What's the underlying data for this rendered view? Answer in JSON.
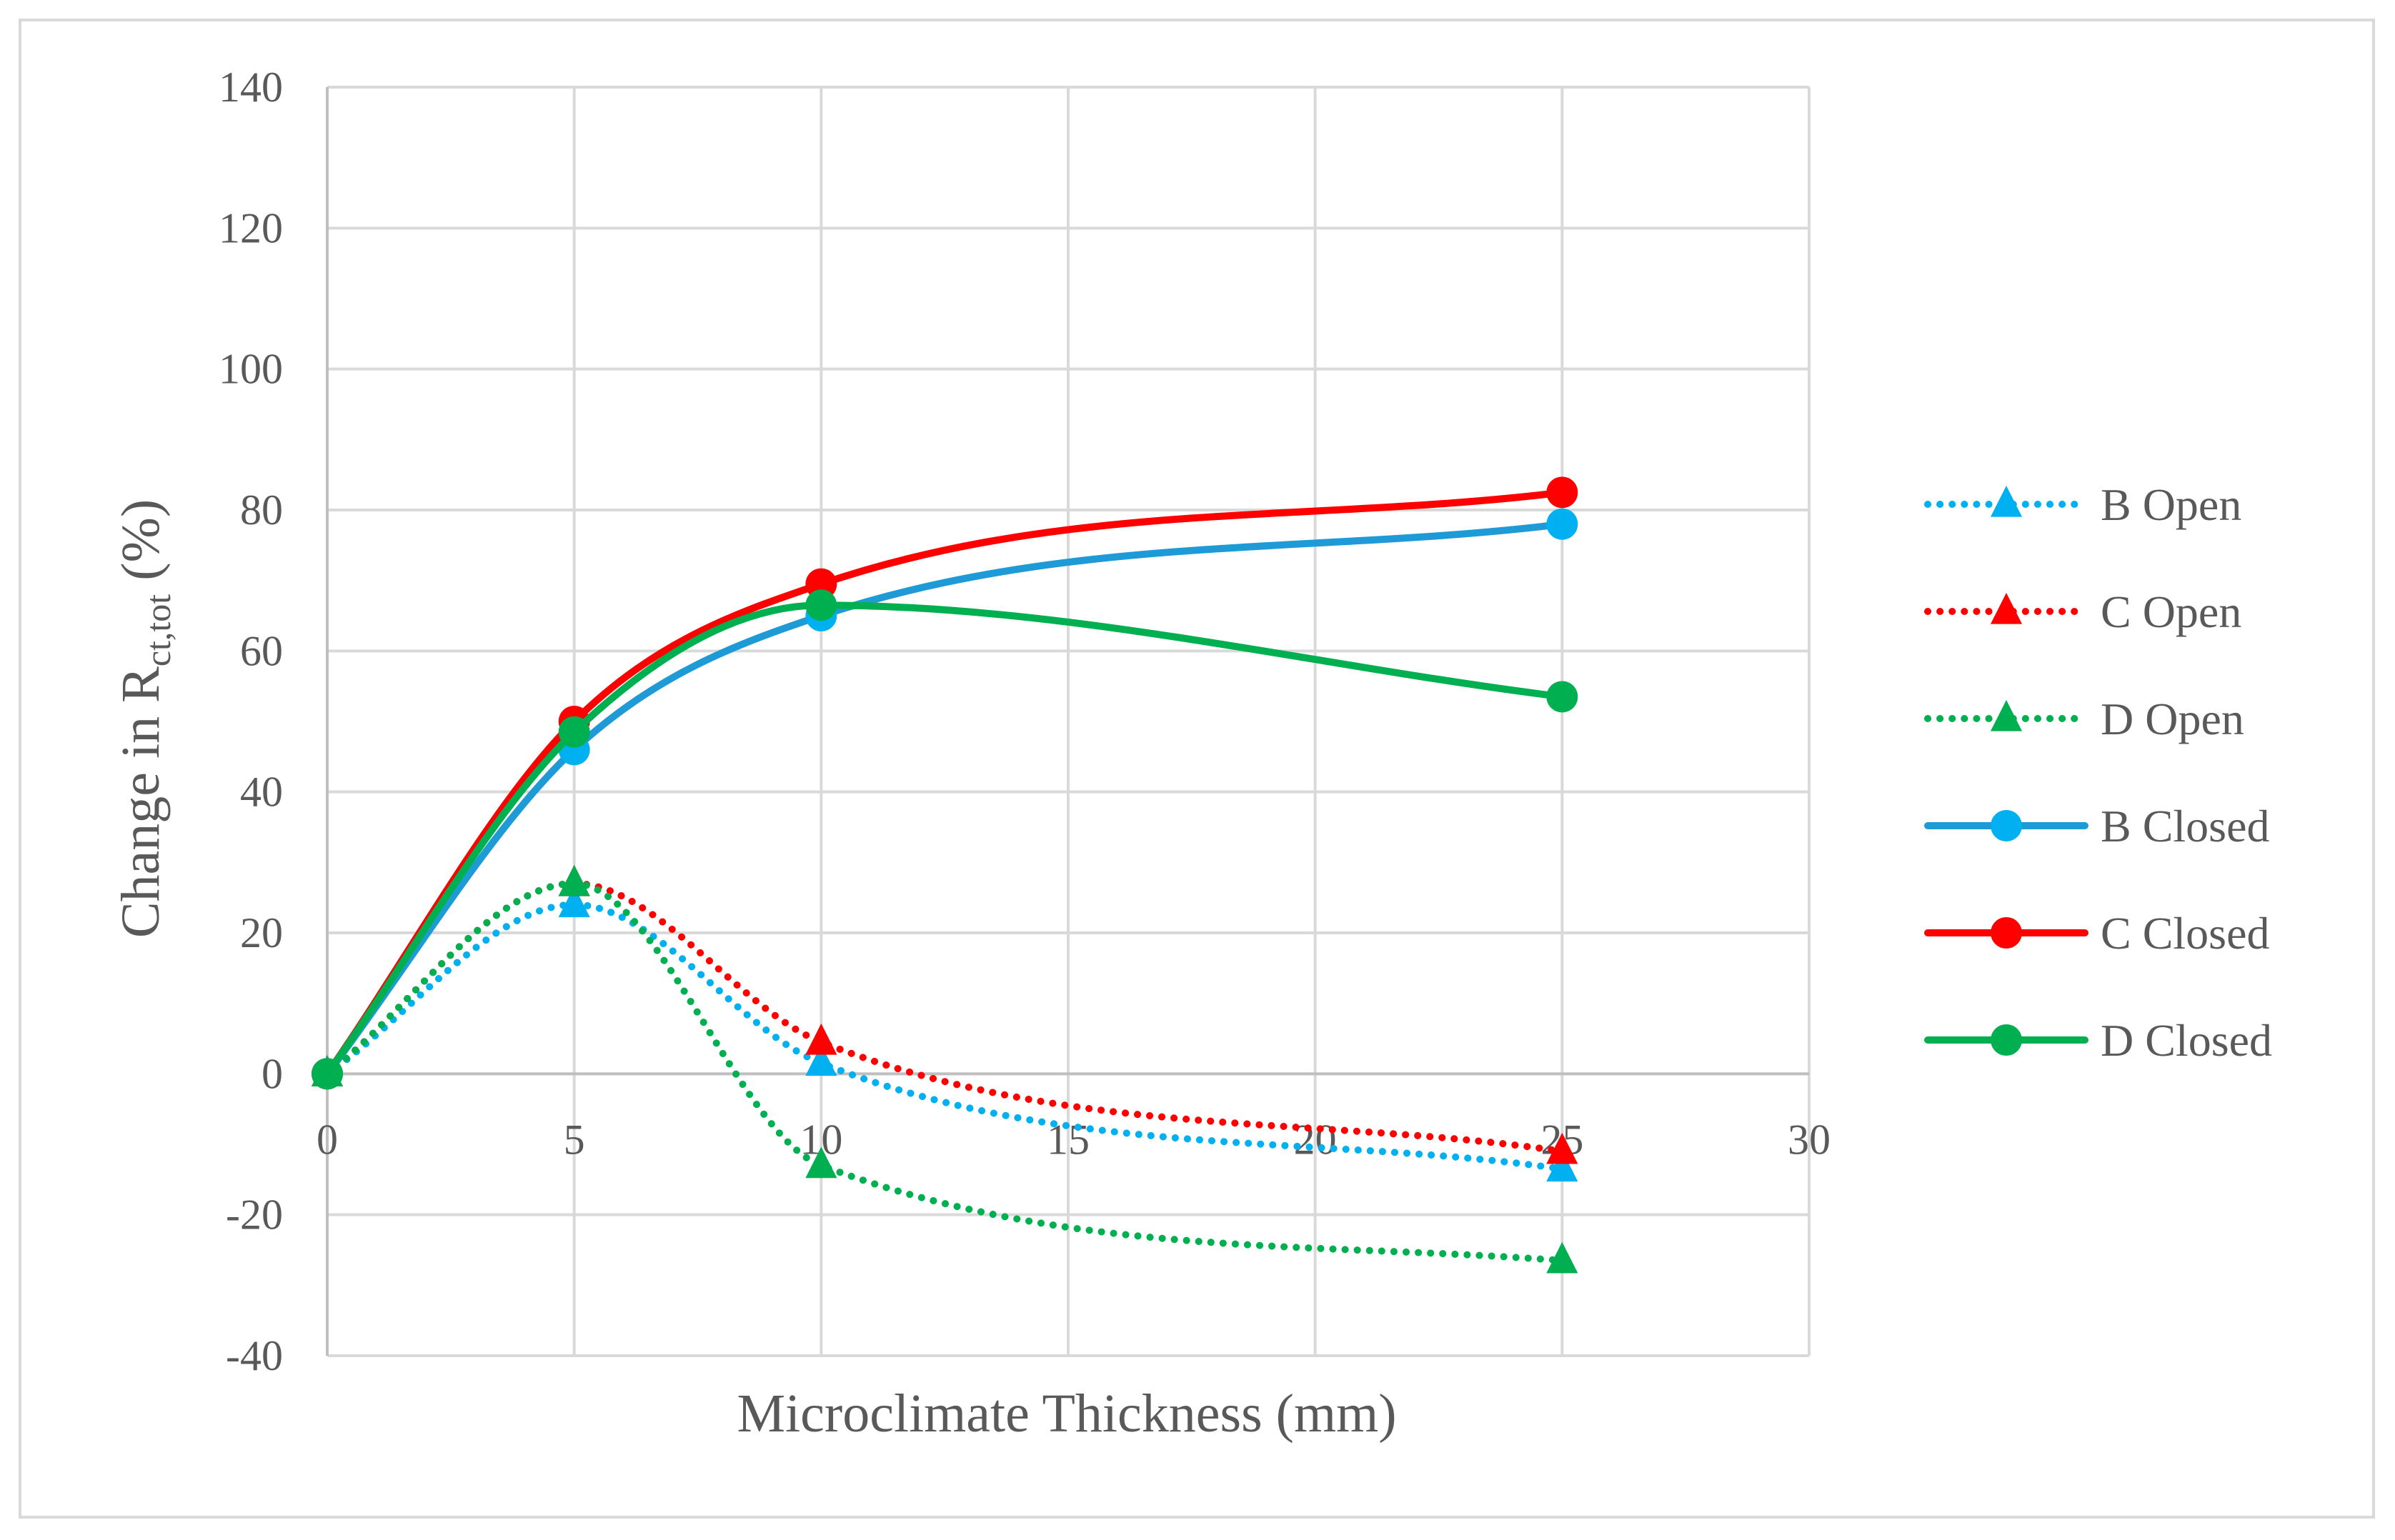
{
  "chart_data": {
    "type": "line",
    "title": "",
    "xlabel": "Microclimate Thickness (mm)",
    "ylabel_main": "Change in R",
    "ylabel_sub": "ct,tot",
    "ylabel_unit": " (%)",
    "xlim": [
      0,
      30
    ],
    "ylim": [
      -40,
      140
    ],
    "xticks": [
      0,
      5,
      10,
      15,
      20,
      25,
      30
    ],
    "yticks": [
      -40,
      -20,
      0,
      20,
      40,
      60,
      80,
      100,
      120,
      140
    ],
    "grid": true,
    "legend_position": "right",
    "x": [
      0,
      5,
      10,
      25
    ],
    "series": [
      {
        "name": "B Open",
        "values": [
          0,
          24,
          1.5,
          -13.5
        ],
        "color": "#00B0F0",
        "style": "dotted",
        "marker": "triangle"
      },
      {
        "name": "C Open",
        "values": [
          0,
          27,
          4.5,
          -11
        ],
        "color": "#FF0000",
        "style": "dotted",
        "marker": "triangle"
      },
      {
        "name": "D Open",
        "values": [
          0,
          27,
          -13,
          -26.5
        ],
        "color": "#00B050",
        "style": "dotted",
        "marker": "triangle"
      },
      {
        "name": "B Closed",
        "values": [
          0,
          46,
          65,
          78
        ],
        "color": "#1E9BD7",
        "style": "solid",
        "marker": "circle",
        "markerColor": "#00B0F0"
      },
      {
        "name": "C Closed",
        "values": [
          0,
          50,
          69.5,
          82.5
        ],
        "color": "#FF0000",
        "style": "solid",
        "marker": "circle"
      },
      {
        "name": "D Closed",
        "values": [
          0,
          48.5,
          66.5,
          53.5
        ],
        "color": "#00B050",
        "style": "solid",
        "marker": "circle"
      }
    ]
  }
}
